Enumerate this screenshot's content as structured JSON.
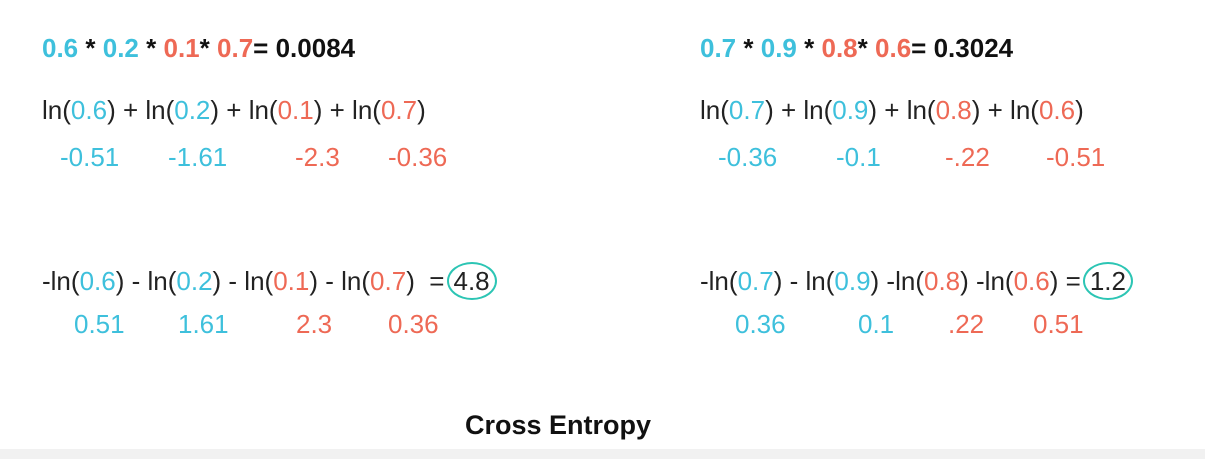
{
  "left": {
    "product": {
      "terms": [
        {
          "value": "0.6",
          "color": "blue"
        },
        {
          "value": "0.2",
          "color": "blue"
        },
        {
          "value": "0.1",
          "color": "red"
        },
        {
          "value": "0.7",
          "color": "red"
        }
      ],
      "result": "0.0084"
    },
    "ln_terms": [
      {
        "arg": "0.6",
        "color": "blue",
        "value": "-0.51"
      },
      {
        "arg": "0.2",
        "color": "blue",
        "value": "-1.61"
      },
      {
        "arg": "0.1",
        "color": "red",
        "value": "-2.3"
      },
      {
        "arg": "0.7",
        "color": "red",
        "value": "-0.36"
      }
    ],
    "neg_values": [
      "0.51",
      "1.61",
      "2.3",
      "0.36"
    ],
    "cross_entropy": "4.8"
  },
  "right": {
    "product": {
      "terms": [
        {
          "value": "0.7",
          "color": "blue"
        },
        {
          "value": "0.9",
          "color": "blue"
        },
        {
          "value": "0.8",
          "color": "red"
        },
        {
          "value": "0.6",
          "color": "red"
        }
      ],
      "result": "0.3024"
    },
    "ln_terms": [
      {
        "arg": "0.7",
        "color": "blue",
        "value": "-0.36"
      },
      {
        "arg": "0.9",
        "color": "blue",
        "value": "-0.1"
      },
      {
        "arg": "0.8",
        "color": "red",
        "value": "-.22"
      },
      {
        "arg": "0.6",
        "color": "red",
        "value": "-0.51"
      }
    ],
    "neg_values": [
      "0.36",
      "0.1",
      ".22",
      "0.51"
    ],
    "cross_entropy": "1.2"
  },
  "title": "Cross Entropy",
  "colors": {
    "blue": "#3ec0dc",
    "red": "#ee6955",
    "circle": "#2cc5b4"
  }
}
